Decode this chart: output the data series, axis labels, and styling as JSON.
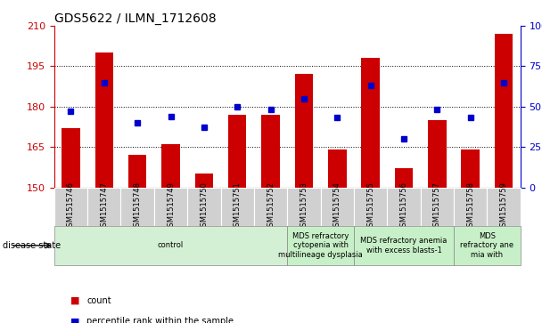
{
  "title": "GDS5622 / ILMN_1712608",
  "samples": [
    "GSM1515746",
    "GSM1515747",
    "GSM1515748",
    "GSM1515749",
    "GSM1515750",
    "GSM1515751",
    "GSM1515752",
    "GSM1515753",
    "GSM1515754",
    "GSM1515755",
    "GSM1515756",
    "GSM1515757",
    "GSM1515758",
    "GSM1515759"
  ],
  "counts": [
    172,
    200,
    162,
    166,
    155,
    177,
    177,
    192,
    164,
    198,
    157,
    175,
    164,
    207
  ],
  "percentiles": [
    47,
    65,
    40,
    44,
    37,
    50,
    48,
    55,
    43,
    63,
    30,
    48,
    43,
    65
  ],
  "y_min": 150,
  "y_max": 210,
  "y_ticks": [
    150,
    165,
    180,
    195,
    210
  ],
  "y2_ticks": [
    0,
    25,
    50,
    75,
    100
  ],
  "y2_labels": [
    "0",
    "25",
    "50",
    "75",
    "100%"
  ],
  "bar_color": "#cc0000",
  "square_color": "#0000cc",
  "bar_width": 0.55,
  "group_defs": [
    {
      "start": 0,
      "end": 7,
      "label": "control",
      "color": "#d4f0d4"
    },
    {
      "start": 7,
      "end": 9,
      "label": "MDS refractory\ncytopenia with\nmultilineage dysplasia",
      "color": "#c8f0c8"
    },
    {
      "start": 9,
      "end": 12,
      "label": "MDS refractory anemia\nwith excess blasts-1",
      "color": "#c8f0c8"
    },
    {
      "start": 12,
      "end": 14,
      "label": "MDS\nrefractory ane\nmia with",
      "color": "#c8f0c8"
    }
  ],
  "disease_state_label": "disease state",
  "legend_count_label": "count",
  "legend_percentile_label": "percentile rank within the sample",
  "bg_color": "#ffffff",
  "label_cell_color": "#d0d0d0",
  "grid_color": "black",
  "grid_linestyle": ":",
  "grid_linewidth": 0.7,
  "title_fontsize": 10,
  "axis_fontsize": 8,
  "sample_fontsize": 6,
  "group_fontsize": 6,
  "legend_fontsize": 7,
  "disease_state_fontsize": 7
}
